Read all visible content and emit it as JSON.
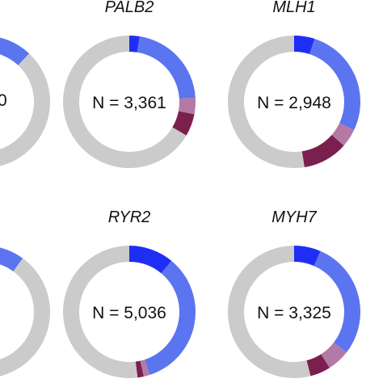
{
  "chart_data": [
    {
      "type": "pie",
      "title": "",
      "center_label": "",
      "series": [
        {
          "values": [
            0.12,
            0.88
          ],
          "colors": [
            "#5b74f0",
            "#cbcbcb"
          ]
        }
      ]
    },
    {
      "type": "pie",
      "title": "PALB2",
      "center_label": "N = 3,361",
      "series": [
        {
          "values": [
            0.025,
            0.215,
            0.04,
            0.055,
            0.665
          ],
          "colors": [
            "#1f2ef5",
            "#5b74f0",
            "#b47aa5",
            "#7a1f4e",
            "#cbcbcb"
          ]
        }
      ]
    },
    {
      "type": "pie",
      "title": "MLH1",
      "center_label": "N = 2,948",
      "series": [
        {
          "values": [
            0.05,
            0.27,
            0.045,
            0.11,
            0.525
          ],
          "colors": [
            "#1f2ef5",
            "#5b74f0",
            "#b47aa5",
            "#7a1f4e",
            "#cbcbcb"
          ]
        }
      ]
    },
    {
      "type": "pie",
      "title": "",
      "center_label": "",
      "series": [
        {
          "values": [
            0.1,
            0.9
          ],
          "colors": [
            "#5b74f0",
            "#cbcbcb"
          ]
        }
      ]
    },
    {
      "type": "pie",
      "title": "RYR2",
      "center_label": "N = 5,036",
      "series": [
        {
          "values": [
            0.11,
            0.34,
            0.015,
            0.015,
            0.52
          ],
          "colors": [
            "#1f2ef5",
            "#5b74f0",
            "#b47aa5",
            "#7a1f4e",
            "#cbcbcb"
          ]
        }
      ]
    },
    {
      "type": "pie",
      "title": "MYH7",
      "center_label": "N = 3,325",
      "series": [
        {
          "values": [
            0.065,
            0.29,
            0.055,
            0.05,
            0.54
          ],
          "colors": [
            "#1f2ef5",
            "#5b74f0",
            "#b47aa5",
            "#7a1f4e",
            "#cbcbcb"
          ]
        }
      ]
    }
  ],
  "partial_label": "0"
}
